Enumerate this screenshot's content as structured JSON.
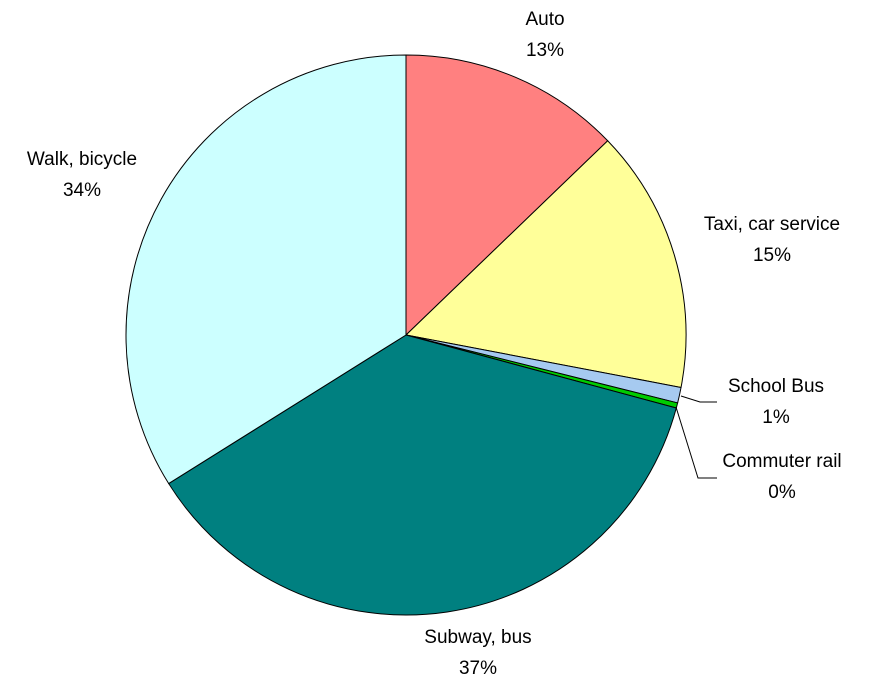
{
  "chart_data": {
    "type": "pie",
    "categories": [
      "Auto",
      "Taxi, car service",
      "School Bus",
      "Commuter rail",
      "Subway, bus",
      "Walk, bicycle"
    ],
    "values": [
      12.8,
      15.2,
      0.9,
      0.3,
      36.9,
      33.9
    ],
    "value_labels": [
      "13%",
      "15%",
      "1%",
      "0%",
      "37%",
      "34%"
    ],
    "colors": [
      "#ff8080",
      "#ffff99",
      "#a6caf0",
      "#00cc00",
      "#008080",
      "#ccffff"
    ]
  }
}
